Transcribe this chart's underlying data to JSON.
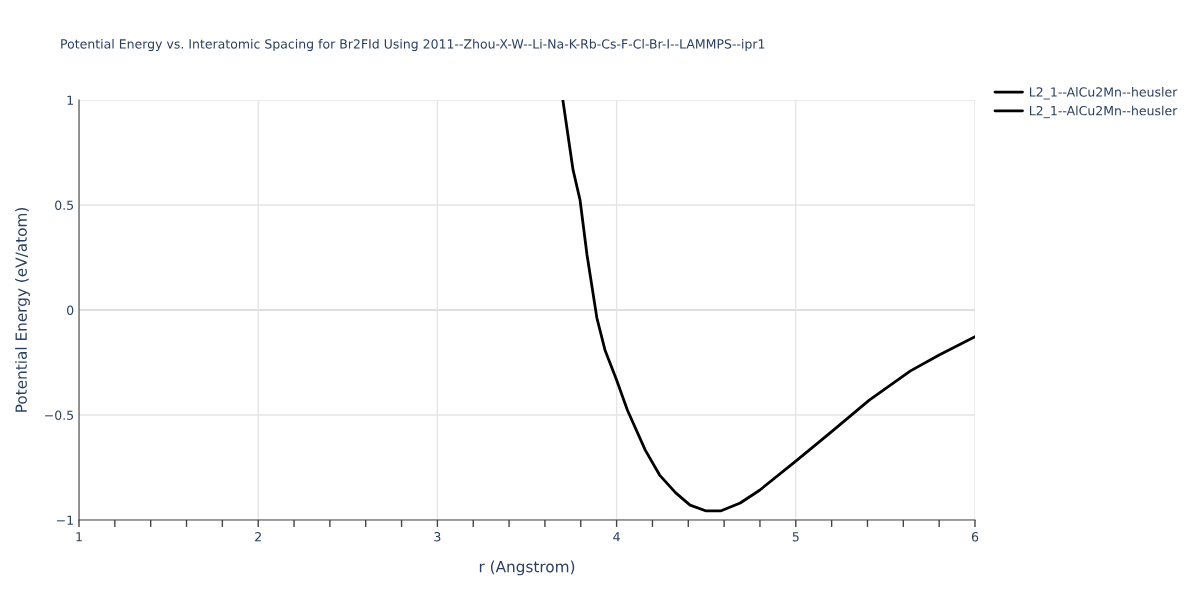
{
  "chart_data": {
    "type": "line",
    "title": "Potential Energy vs. Interatomic Spacing for Br2FId Using 2011--Zhou-X-W--Li-Na-K-Rb-Cs-F-Cl-Br-I--LAMMPS--ipr1",
    "xlabel": "r (Angstrom)",
    "ylabel": "Potential Energy (eV/atom)",
    "x": [
      3.7,
      3.757,
      3.796,
      3.835,
      3.89,
      3.935,
      4.0,
      4.06,
      4.16,
      4.24,
      4.33,
      4.41,
      4.5,
      4.58,
      4.69,
      4.8,
      5.0,
      5.19,
      5.41,
      5.64,
      5.8,
      6.0
    ],
    "series": [
      {
        "name": "L2_1--AlCu2Mn--heusler",
        "color": "#000000",
        "values": [
          1.0,
          0.667,
          0.524,
          0.262,
          -0.038,
          -0.19,
          -0.333,
          -0.476,
          -0.667,
          -0.786,
          -0.871,
          -0.929,
          -0.957,
          -0.957,
          -0.919,
          -0.857,
          -0.72,
          -0.586,
          -0.429,
          -0.29,
          -0.214,
          -0.127
        ]
      },
      {
        "name": "L2_1--AlCu2Mn--heusler",
        "color": "#000000",
        "values": [
          null,
          null,
          null,
          null,
          null,
          null,
          null,
          null,
          null,
          null,
          null,
          null,
          null,
          null,
          null,
          null,
          null,
          null,
          null,
          null,
          null,
          null
        ]
      }
    ],
    "xlim": [
      1,
      6
    ],
    "xticks": [
      1,
      {
        "value": 1.2,
        "label": null
      },
      {
        "value": 1.4,
        "label": null
      },
      {
        "value": 1.6,
        "label": null
      },
      {
        "value": 1.8,
        "label": null
      },
      2,
      {
        "value": 2.2,
        "label": null
      },
      {
        "value": 2.4,
        "label": null
      },
      {
        "value": 2.6,
        "label": null
      },
      {
        "value": 2.8,
        "label": null
      },
      3,
      {
        "value": 3.2,
        "label": null
      },
      {
        "value": 3.4,
        "label": null
      },
      {
        "value": 3.6,
        "label": null
      },
      {
        "value": 3.8,
        "label": null
      },
      4,
      {
        "value": 4.2,
        "label": null
      },
      {
        "value": 4.4,
        "label": null
      },
      {
        "value": 4.6,
        "label": null
      },
      {
        "value": 4.8,
        "label": null
      },
      5,
      {
        "value": 5.2,
        "label": null
      },
      {
        "value": 5.4,
        "label": null
      },
      {
        "value": 5.6,
        "label": null
      },
      {
        "value": 5.8,
        "label": null
      },
      6
    ],
    "ylim": [
      -1,
      1
    ],
    "yticks": [
      {
        "value": -1,
        "label": "−1"
      },
      {
        "value": -0.5,
        "label": "−0.5"
      },
      0,
      0.5,
      1
    ],
    "grid": true,
    "legend": "top right",
    "line_style": "solid",
    "marker": "none"
  }
}
